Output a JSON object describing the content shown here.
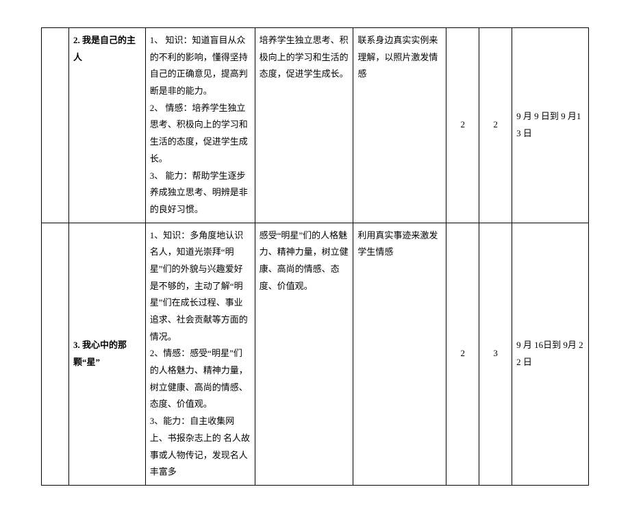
{
  "rows": [
    {
      "title": "2. 我是自己的主人",
      "col3": "1、 知识：知道盲目从众的不利的影响，懂得坚持自己的正确意见，提高判断是非的能力。\n2、 情感：培养学生独立思考、积极向上的学习和生活的态度，促进学生成长。\n3、 能力：帮助学生逐步养成独立思考、明辨是非的良好习惯。",
      "col4": "培养学生独立思考、积极向上的学习和生活的态度，促进学生成长。",
      "col5": "联系身边真实实例来理解，以照片激发情感",
      "col6": "2",
      "col7": "2",
      "col8": "9 月 9 日到 9 月13 日"
    },
    {
      "title": "3. 我心中的那颗“星”",
      "col3": "1、知识：多角度地认识名人，知道光崇拜“明星”们的外貌与兴趣爱好是不够的，主动了解“明星”们在成长过程、事业追求、社会贡献等方面的情况。\n2、情感：感受“明星”们的人格魅力、精神力量，树立健康、高尚的情感、态度、价值观。\n3、能力：自主收集网上、书报杂志上的 名人故事或人物传记，发现名人丰富多",
      "col4": "感受“明星”们的人格魅力、精神力量，树立健康、高尚的情感、态度、价值观。",
      "col5": "利用真实事迹来激发学生情感",
      "col6": "2",
      "col7": "3",
      "col8": " 9 月 16日到 9月 22 日"
    }
  ]
}
